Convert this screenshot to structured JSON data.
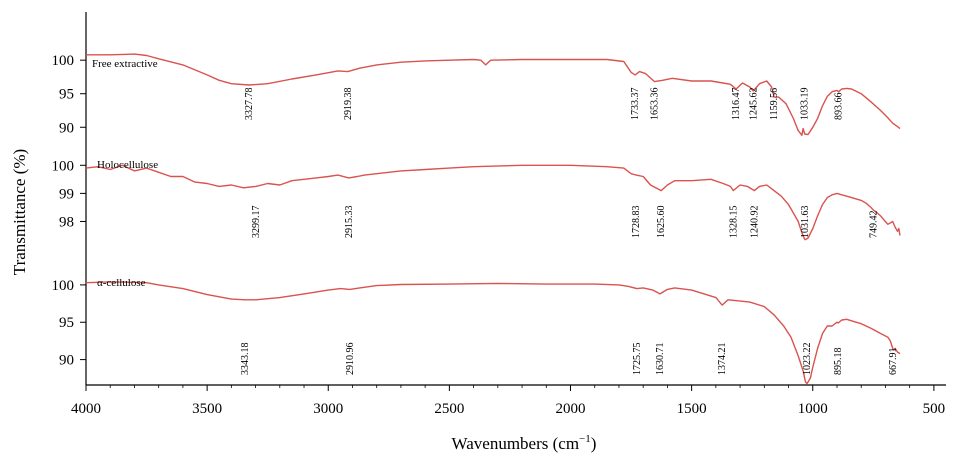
{
  "chart_data": {
    "type": "line",
    "xlabel": "Wavenumbers (cm",
    "xlabel_sup": "−1",
    "xlabel_end": ")",
    "ylabel": "Transmittance (%)",
    "xlim": [
      4000,
      450
    ],
    "x_ticks": [
      4000,
      3500,
      3000,
      2500,
      2000,
      1500,
      1000,
      500
    ],
    "line_color": "#d9534f",
    "grid": false,
    "panels": [
      {
        "name": "Free extractive",
        "y_ticks": [
          100,
          95,
          90
        ],
        "ylim": [
          88.1,
          104.5
        ],
        "points": [
          [
            4000,
            100.8
          ],
          [
            3900,
            100.8
          ],
          [
            3800,
            100.9
          ],
          [
            3750,
            100.7
          ],
          [
            3700,
            100.2
          ],
          [
            3600,
            99.3
          ],
          [
            3500,
            97.8
          ],
          [
            3450,
            97.0
          ],
          [
            3400,
            96.5
          ],
          [
            3327.78,
            96.3
          ],
          [
            3250,
            96.5
          ],
          [
            3150,
            97.2
          ],
          [
            3050,
            97.8
          ],
          [
            2960,
            98.4
          ],
          [
            2919.38,
            98.3
          ],
          [
            2870,
            98.8
          ],
          [
            2800,
            99.3
          ],
          [
            2700,
            99.7
          ],
          [
            2600,
            99.9
          ],
          [
            2500,
            100.0
          ],
          [
            2400,
            100.1
          ],
          [
            2370,
            100.0
          ],
          [
            2350,
            99.3
          ],
          [
            2330,
            100.0
          ],
          [
            2200,
            100.1
          ],
          [
            2000,
            100.1
          ],
          [
            1850,
            100.1
          ],
          [
            1780,
            99.8
          ],
          [
            1750,
            98.2
          ],
          [
            1733.37,
            97.8
          ],
          [
            1715,
            98.3
          ],
          [
            1690,
            98.0
          ],
          [
            1653.36,
            96.8
          ],
          [
            1620,
            97.0
          ],
          [
            1580,
            97.3
          ],
          [
            1500,
            96.9
          ],
          [
            1420,
            96.9
          ],
          [
            1370,
            96.6
          ],
          [
            1340,
            96.4
          ],
          [
            1316.47,
            95.7
          ],
          [
            1290,
            96.6
          ],
          [
            1260,
            96.0
          ],
          [
            1245.62,
            95.4
          ],
          [
            1220,
            96.5
          ],
          [
            1190,
            96.9
          ],
          [
            1170,
            96.0
          ],
          [
            1159.56,
            94.5
          ],
          [
            1140,
            94.5
          ],
          [
            1110,
            93.5
          ],
          [
            1080,
            91.3
          ],
          [
            1060,
            89.5
          ],
          [
            1045,
            88.8
          ],
          [
            1040,
            89.8
          ],
          [
            1033.19,
            89.0
          ],
          [
            1020,
            88.9
          ],
          [
            1000,
            90.0
          ],
          [
            980,
            91.3
          ],
          [
            960,
            93.2
          ],
          [
            940,
            94.6
          ],
          [
            920,
            95.3
          ],
          [
            900,
            95.5
          ],
          [
            893.66,
            95.3
          ],
          [
            880,
            95.7
          ],
          [
            860,
            95.8
          ],
          [
            840,
            95.7
          ],
          [
            800,
            95.0
          ],
          [
            760,
            93.8
          ],
          [
            720,
            92.5
          ],
          [
            690,
            91.4
          ],
          [
            670,
            90.6
          ],
          [
            650,
            90.1
          ],
          [
            640,
            89.8
          ]
        ],
        "peaks": [
          3327.78,
          2919.38,
          1733.37,
          1653.36,
          1316.47,
          1245.62,
          1159.56,
          1033.19,
          893.66
        ]
      },
      {
        "name": "Holocellulose",
        "y_ticks": [
          100,
          99,
          98
        ],
        "ylim": [
          96.7,
          100.9
        ],
        "points": [
          [
            4000,
            99.9
          ],
          [
            3950,
            99.95
          ],
          [
            3900,
            99.85
          ],
          [
            3850,
            100.0
          ],
          [
            3800,
            99.8
          ],
          [
            3750,
            99.9
          ],
          [
            3700,
            99.75
          ],
          [
            3650,
            99.6
          ],
          [
            3600,
            99.6
          ],
          [
            3550,
            99.4
          ],
          [
            3500,
            99.35
          ],
          [
            3450,
            99.25
          ],
          [
            3400,
            99.3
          ],
          [
            3350,
            99.2
          ],
          [
            3299.17,
            99.25
          ],
          [
            3250,
            99.35
          ],
          [
            3200,
            99.3
          ],
          [
            3150,
            99.45
          ],
          [
            3100,
            99.5
          ],
          [
            3050,
            99.55
          ],
          [
            3000,
            99.6
          ],
          [
            2960,
            99.65
          ],
          [
            2915.33,
            99.55
          ],
          [
            2880,
            99.6
          ],
          [
            2850,
            99.65
          ],
          [
            2800,
            99.7
          ],
          [
            2700,
            99.8
          ],
          [
            2600,
            99.85
          ],
          [
            2500,
            99.9
          ],
          [
            2400,
            99.95
          ],
          [
            2200,
            100.0
          ],
          [
            2000,
            100.0
          ],
          [
            1850,
            99.95
          ],
          [
            1780,
            99.9
          ],
          [
            1750,
            99.7
          ],
          [
            1728.83,
            99.65
          ],
          [
            1700,
            99.6
          ],
          [
            1670,
            99.3
          ],
          [
            1625.6,
            99.1
          ],
          [
            1600,
            99.3
          ],
          [
            1570,
            99.45
          ],
          [
            1500,
            99.45
          ],
          [
            1420,
            99.5
          ],
          [
            1370,
            99.35
          ],
          [
            1340,
            99.25
          ],
          [
            1328.15,
            99.1
          ],
          [
            1300,
            99.3
          ],
          [
            1270,
            99.25
          ],
          [
            1240.92,
            99.1
          ],
          [
            1220,
            99.25
          ],
          [
            1190,
            99.3
          ],
          [
            1160,
            99.1
          ],
          [
            1130,
            98.9
          ],
          [
            1100,
            98.6
          ],
          [
            1080,
            98.3
          ],
          [
            1060,
            98.0
          ],
          [
            1045,
            97.6
          ],
          [
            1035,
            97.4
          ],
          [
            1031.63,
            97.35
          ],
          [
            1020,
            97.4
          ],
          [
            1000,
            97.75
          ],
          [
            980,
            98.2
          ],
          [
            960,
            98.6
          ],
          [
            940,
            98.85
          ],
          [
            920,
            98.95
          ],
          [
            900,
            99.0
          ],
          [
            880,
            98.95
          ],
          [
            860,
            98.9
          ],
          [
            840,
            98.85
          ],
          [
            800,
            98.75
          ],
          [
            780,
            98.65
          ],
          [
            760,
            98.5
          ],
          [
            749.42,
            98.4
          ],
          [
            740,
            98.35
          ],
          [
            720,
            98.2
          ],
          [
            700,
            98.0
          ],
          [
            690,
            97.9
          ],
          [
            670,
            98.0
          ],
          [
            660,
            97.8
          ],
          [
            650,
            97.65
          ],
          [
            645,
            97.75
          ],
          [
            640,
            97.5
          ]
        ],
        "peaks": [
          3299.17,
          2915.33,
          1728.83,
          1625.6,
          1328.15,
          1240.92,
          1031.63,
          749.42
        ]
      },
      {
        "name": "α-cellulose",
        "y_ticks": [
          100,
          95,
          90
        ],
        "ylim": [
          86.6,
          103.6
        ],
        "points": [
          [
            4000,
            100.3
          ],
          [
            3900,
            100.4
          ],
          [
            3800,
            100.35
          ],
          [
            3750,
            100.3
          ],
          [
            3700,
            100.0
          ],
          [
            3600,
            99.5
          ],
          [
            3500,
            98.7
          ],
          [
            3450,
            98.4
          ],
          [
            3400,
            98.1
          ],
          [
            3343.18,
            98.0
          ],
          [
            3300,
            98.0
          ],
          [
            3200,
            98.3
          ],
          [
            3100,
            98.8
          ],
          [
            3000,
            99.3
          ],
          [
            2950,
            99.5
          ],
          [
            2910.96,
            99.4
          ],
          [
            2870,
            99.6
          ],
          [
            2800,
            99.9
          ],
          [
            2700,
            100.05
          ],
          [
            2500,
            100.1
          ],
          [
            2300,
            100.2
          ],
          [
            2100,
            100.1
          ],
          [
            1900,
            100.1
          ],
          [
            1800,
            100.0
          ],
          [
            1760,
            99.8
          ],
          [
            1725.75,
            99.5
          ],
          [
            1700,
            99.6
          ],
          [
            1660,
            99.3
          ],
          [
            1630.71,
            98.8
          ],
          [
            1600,
            99.4
          ],
          [
            1570,
            99.6
          ],
          [
            1500,
            99.3
          ],
          [
            1440,
            98.7
          ],
          [
            1400,
            98.3
          ],
          [
            1374.21,
            97.3
          ],
          [
            1350,
            98.0
          ],
          [
            1320,
            97.9
          ],
          [
            1260,
            97.7
          ],
          [
            1200,
            97.1
          ],
          [
            1160,
            96.0
          ],
          [
            1120,
            94.5
          ],
          [
            1090,
            93.0
          ],
          [
            1060,
            90.5
          ],
          [
            1040,
            88.5
          ],
          [
            1030,
            87.0
          ],
          [
            1023.22,
            86.8
          ],
          [
            1010,
            87.5
          ],
          [
            1000,
            89.0
          ],
          [
            980,
            91.5
          ],
          [
            960,
            93.5
          ],
          [
            940,
            94.5
          ],
          [
            920,
            94.5
          ],
          [
            900,
            95.0
          ],
          [
            895.18,
            94.9
          ],
          [
            880,
            95.3
          ],
          [
            860,
            95.4
          ],
          [
            840,
            95.2
          ],
          [
            800,
            94.8
          ],
          [
            760,
            94.2
          ],
          [
            720,
            93.5
          ],
          [
            690,
            93.0
          ],
          [
            680,
            92.5
          ],
          [
            667.91,
            91.3
          ],
          [
            660,
            91.5
          ],
          [
            650,
            91.0
          ],
          [
            640,
            90.8
          ]
        ],
        "peaks": [
          3343.18,
          2910.96,
          1725.75,
          1630.71,
          1374.21,
          1023.22,
          895.18,
          667.91
        ]
      }
    ]
  }
}
